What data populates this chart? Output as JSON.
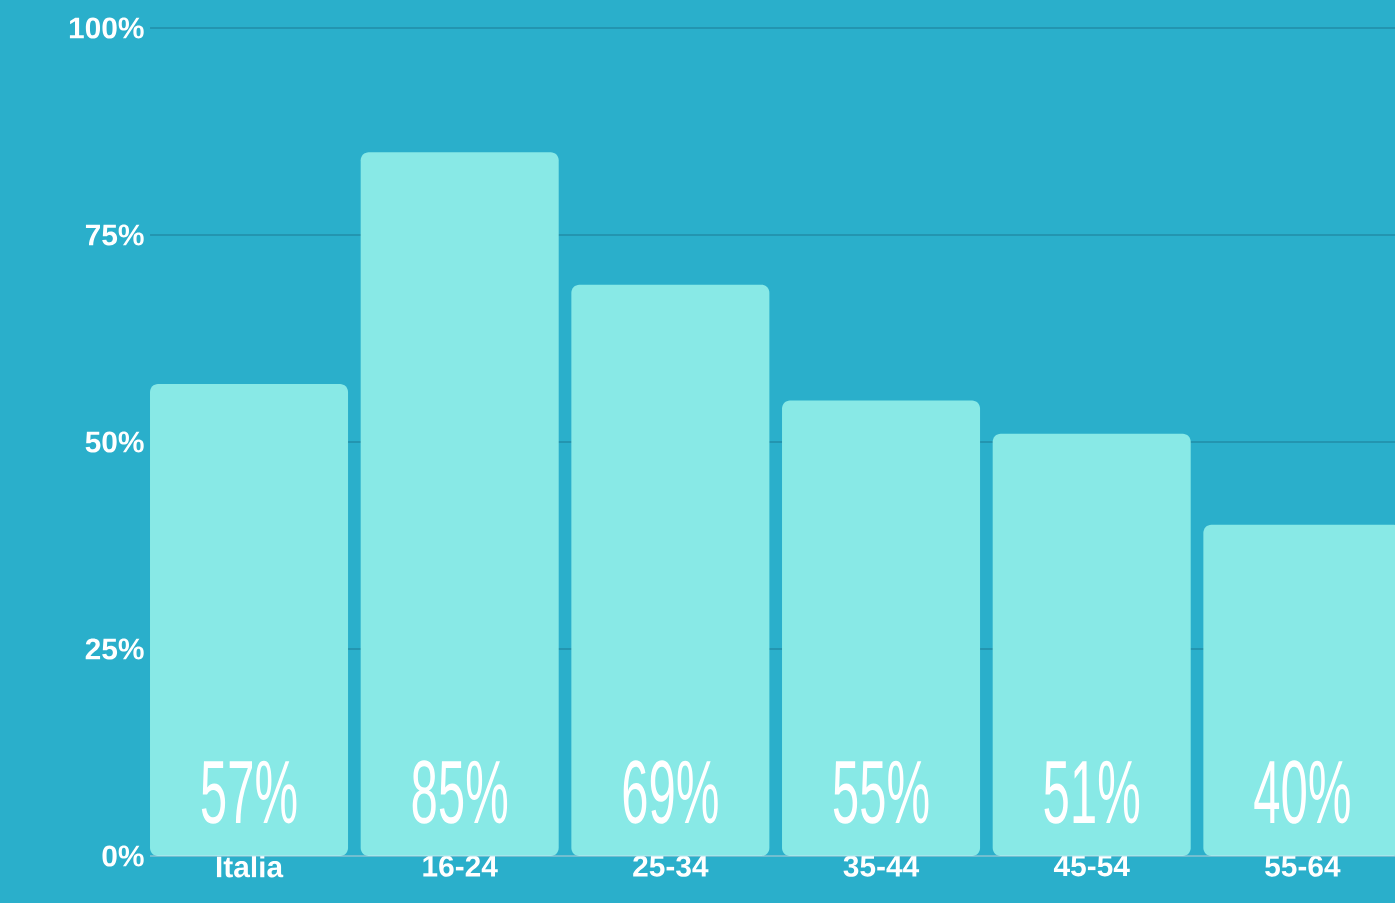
{
  "chart_data": {
    "type": "bar",
    "categories": [
      "Italia",
      "16-24",
      "25-34",
      "35-44",
      "45-54",
      "55-64"
    ],
    "values": [
      57,
      85,
      69,
      55,
      51,
      40
    ],
    "value_labels": [
      "57%",
      "85%",
      "69%",
      "55%",
      "51%",
      "40%"
    ],
    "color": "#88e9e6",
    "ylim": [
      0,
      100
    ],
    "yticks": [
      {
        "value": 0,
        "label": "0%"
      },
      {
        "value": 25,
        "label": "25%"
      },
      {
        "value": 50,
        "label": "50%"
      },
      {
        "value": 75,
        "label": "75%"
      },
      {
        "value": 100,
        "label": "100%"
      }
    ],
    "grid": "y"
  }
}
